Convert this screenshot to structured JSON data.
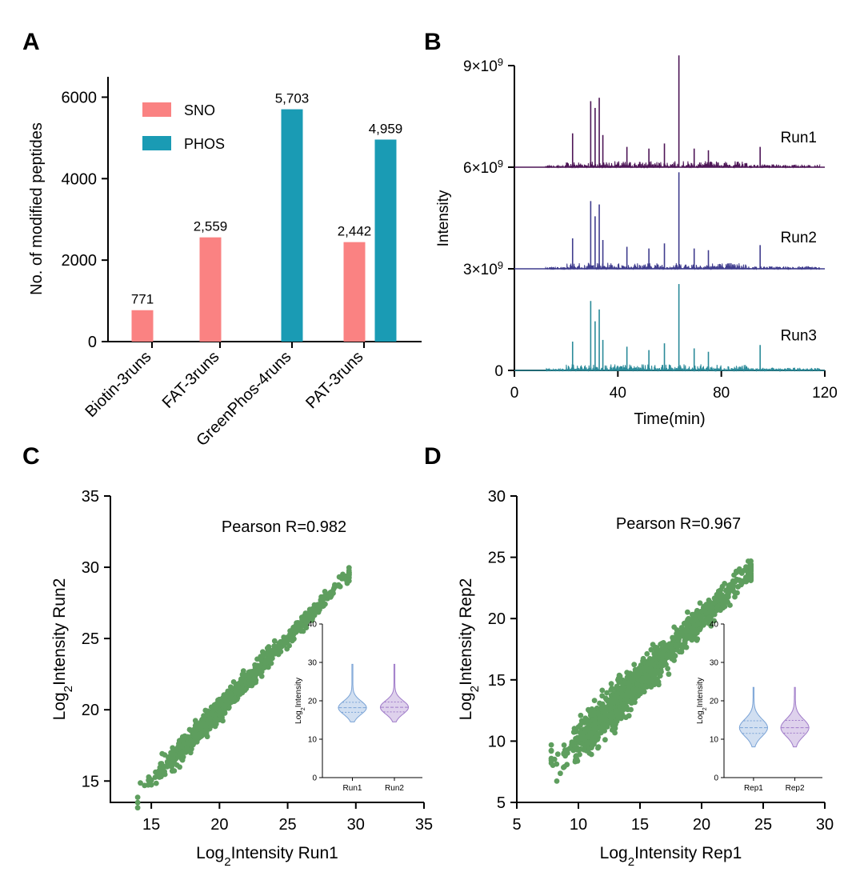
{
  "colors": {
    "sno": "#fa8282",
    "phos": "#1a9bb4",
    "run1": "#4d1556",
    "run2": "#3f3c8d",
    "run3": "#2a8a99",
    "scatter": "#5e9e5e",
    "violin_left": "#7aa3d6",
    "violin_right": "#a07cc9",
    "axis": "#000000"
  },
  "panels": {
    "a": {
      "letter": "A"
    },
    "b": {
      "letter": "B"
    },
    "c": {
      "letter": "C"
    },
    "d": {
      "letter": "D"
    }
  },
  "chart_data": [
    {
      "id": "a",
      "type": "bar",
      "title": "",
      "xlabel": "",
      "ylabel": "No. of modified peptides",
      "ylim": [
        0,
        6500
      ],
      "yticks": [
        0,
        2000,
        4000,
        6000
      ],
      "categories": [
        "Biotin-3runs",
        "FAT-3runs",
        "GreenPhos-4runs",
        "PAT-3runs"
      ],
      "series": [
        {
          "name": "SNO",
          "color_key": "sno",
          "values": [
            771,
            2559,
            null,
            2442
          ],
          "labels": [
            "771",
            "2,559",
            "",
            "2,442"
          ]
        },
        {
          "name": "PHOS",
          "color_key": "phos",
          "values": [
            null,
            null,
            5703,
            4959
          ],
          "labels": [
            "",
            "",
            "5,703",
            "4,959"
          ]
        }
      ],
      "legend": "top-left"
    },
    {
      "id": "b",
      "type": "line",
      "xlabel": "Time(min)",
      "ylabel": "Intensity",
      "xlim": [
        0,
        120
      ],
      "xticks": [
        0,
        40,
        80,
        120
      ],
      "ylim": [
        0,
        9000000000
      ],
      "ytick_labels": [
        {
          "value": 0,
          "base": "0",
          "exp": ""
        },
        {
          "value": 3000000000,
          "base": "3×10",
          "exp": "9"
        },
        {
          "value": 6000000000,
          "base": "6×10",
          "exp": "9"
        },
        {
          "value": 9000000000,
          "base": "9×10",
          "exp": "9"
        }
      ],
      "series": [
        {
          "name": "Run1",
          "color_key": "run1",
          "baseline": 6000000000,
          "noise_range": [
            12,
            118
          ],
          "peaks": [
            [
              22.5,
              1000000000.0
            ],
            [
              29.5,
              1950000000.0
            ],
            [
              31.2,
              1750000000.0
            ],
            [
              32.8,
              2050000000.0
            ],
            [
              34.2,
              950000000.0
            ],
            [
              43.5,
              600000000.0
            ],
            [
              52.0,
              550000000.0
            ],
            [
              58.0,
              700000000.0
            ],
            [
              63.6,
              3300000000.0
            ],
            [
              69.5,
              550000000.0
            ],
            [
              75.0,
              500000000.0
            ],
            [
              95.0,
              600000000.0
            ]
          ]
        },
        {
          "name": "Run2",
          "color_key": "run2",
          "baseline": 3000000000,
          "noise_range": [
            12,
            118
          ],
          "peaks": [
            [
              22.5,
              900000000.0
            ],
            [
              29.5,
              2000000000.0
            ],
            [
              31.2,
              1550000000.0
            ],
            [
              32.8,
              1900000000.0
            ],
            [
              34.2,
              850000000.0
            ],
            [
              43.5,
              650000000.0
            ],
            [
              52.0,
              600000000.0
            ],
            [
              58.0,
              750000000.0
            ],
            [
              63.6,
              2850000000.0
            ],
            [
              69.5,
              600000000.0
            ],
            [
              75.0,
              550000000.0
            ],
            [
              95.0,
              700000000.0
            ]
          ]
        },
        {
          "name": "Run3",
          "color_key": "run3",
          "baseline": 0,
          "noise_range": [
            12,
            118
          ],
          "peaks": [
            [
              22.5,
              850000000.0
            ],
            [
              29.5,
              2050000000.0
            ],
            [
              31.2,
              1450000000.0
            ],
            [
              32.8,
              1800000000.0
            ],
            [
              34.2,
              900000000.0
            ],
            [
              43.5,
              700000000.0
            ],
            [
              52.0,
              600000000.0
            ],
            [
              58.0,
              800000000.0
            ],
            [
              63.6,
              2550000000.0
            ],
            [
              69.5,
              650000000.0
            ],
            [
              75.0,
              550000000.0
            ],
            [
              95.0,
              750000000.0
            ]
          ]
        }
      ]
    },
    {
      "id": "c",
      "type": "scatter",
      "title": "Pearson R=0.982",
      "xlabel_prefix": "Log",
      "xlabel_sub": "2",
      "xlabel_suffix": "Intensity Run1",
      "ylabel_prefix": "Log",
      "ylabel_sub": "2",
      "ylabel_suffix": "Intensity Run2",
      "xlim": [
        12,
        35
      ],
      "ylim": [
        13.5,
        35
      ],
      "xticks": [
        15,
        20,
        25,
        30,
        35
      ],
      "yticks": [
        15,
        20,
        25,
        30,
        35
      ],
      "cloud": {
        "x_range": [
          14,
          29.5
        ],
        "center": 18.2,
        "spread": 0.45,
        "count": 900
      },
      "inset": {
        "type": "violin",
        "ylabel_prefix": "Log",
        "ylabel_sub": "2",
        "ylabel_suffix": "Intensity",
        "ylim": [
          0,
          40
        ],
        "yticks": [
          0,
          10,
          20,
          30,
          40
        ],
        "categories": [
          "Run1",
          "Run2"
        ],
        "violins": [
          {
            "min": 14.5,
            "max": 29.5,
            "median": 18.2,
            "q1": 17.0,
            "q3": 19.6
          },
          {
            "min": 14.5,
            "max": 29.5,
            "median": 18.3,
            "q1": 17.1,
            "q3": 19.7
          }
        ]
      }
    },
    {
      "id": "d",
      "type": "scatter",
      "title": "Pearson R=0.967",
      "xlabel_prefix": "Log",
      "xlabel_sub": "2",
      "xlabel_suffix": "Intensity Rep1",
      "ylabel_prefix": "Log",
      "ylabel_sub": "2",
      "ylabel_suffix": "Intensity Rep2",
      "xlim": [
        5,
        30
      ],
      "ylim": [
        5,
        30
      ],
      "xticks": [
        5,
        10,
        15,
        20,
        25,
        30
      ],
      "yticks": [
        5,
        10,
        15,
        20,
        25,
        30
      ],
      "cloud": {
        "x_range": [
          7.8,
          24
        ],
        "center": 12.5,
        "spread": 0.9,
        "count": 1300
      },
      "inset": {
        "type": "violin",
        "ylabel_prefix": "Log",
        "ylabel_sub": "2",
        "ylabel_suffix": "Intensity",
        "ylim": [
          0,
          40
        ],
        "yticks": [
          0,
          10,
          20,
          30,
          40
        ],
        "categories": [
          "Rep1",
          "Rep2"
        ],
        "violins": [
          {
            "min": 8.0,
            "max": 23.5,
            "median": 13.0,
            "q1": 11.5,
            "q3": 14.8
          },
          {
            "min": 8.0,
            "max": 23.5,
            "median": 13.0,
            "q1": 11.6,
            "q3": 14.9
          }
        ]
      }
    }
  ]
}
